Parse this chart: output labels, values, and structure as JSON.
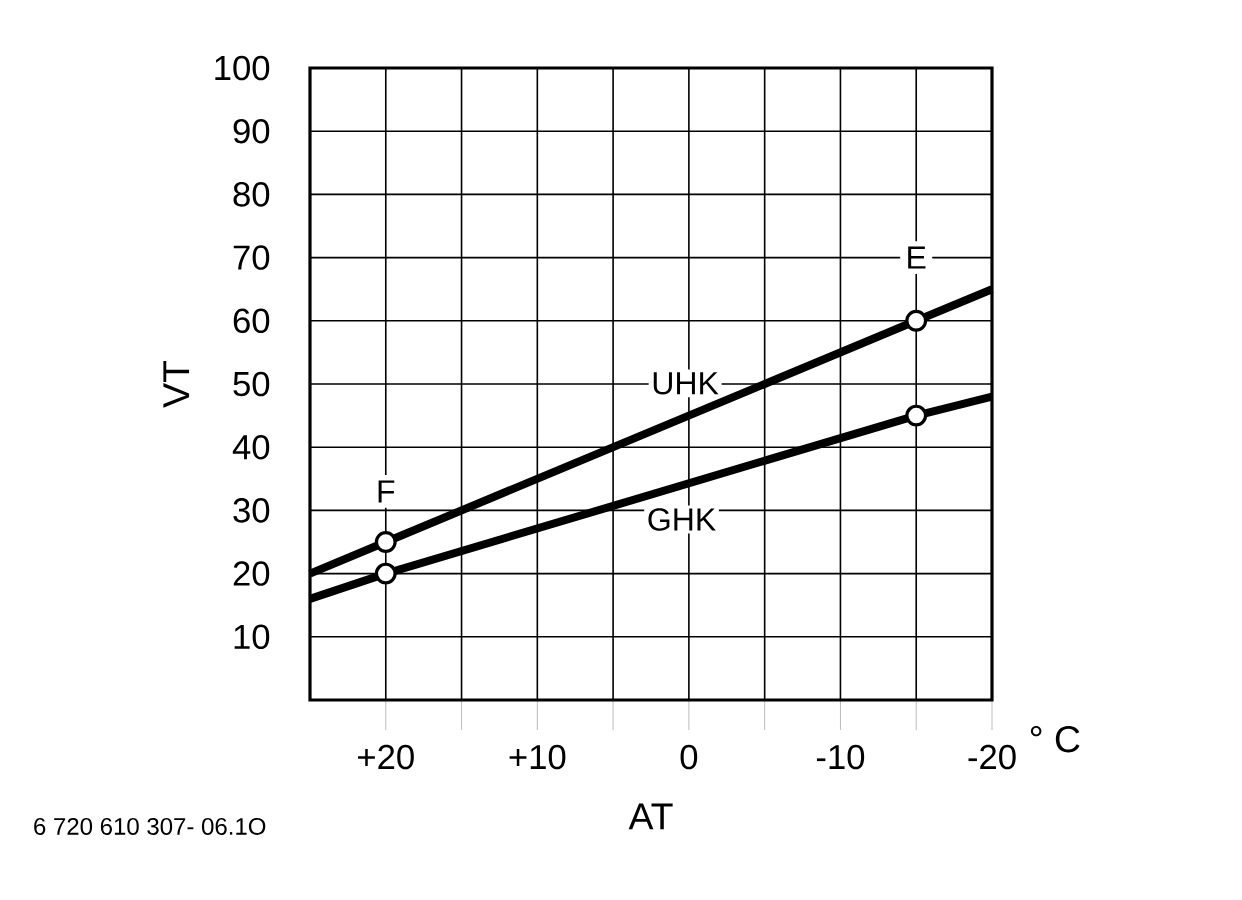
{
  "chart_data": {
    "type": "line",
    "xlabel": "AT",
    "ylabel": "VT",
    "x": [
      25,
      20,
      -15,
      -20
    ],
    "series": [
      {
        "name": "UHK",
        "color": "#000000",
        "values": [
          20,
          25,
          60,
          65
        ]
      },
      {
        "name": "GHK",
        "color": "#000000",
        "values": [
          16,
          20,
          45,
          48
        ]
      },
      {
        "type": "scatter",
        "color": "#000000",
        "marker": "circle",
        "values": [
          null,
          25,
          60,
          null
        ]
      },
      {
        "type": "scatter",
        "color": "#000000",
        "marker": "circle",
        "values": [
          null,
          20,
          45,
          null
        ]
      }
    ],
    "xlim": [
      25,
      -20
    ],
    "xticks": [
      {
        "value": 20,
        "label": "+20"
      },
      {
        "value": 15,
        "label": null
      },
      {
        "value": 10,
        "label": "+10"
      },
      {
        "value": 5,
        "label": null
      },
      0,
      {
        "value": -5,
        "label": null
      },
      -10,
      {
        "value": -15,
        "label": null
      },
      -20
    ],
    "ylim": [
      0,
      100
    ],
    "yticks": [
      10,
      20,
      30,
      40,
      50,
      60,
      70,
      80,
      90,
      100
    ],
    "grid": true,
    "annotations": [
      {
        "text": "E",
        "x": -15,
        "y": 70
      },
      {
        "text": "F",
        "x": 20,
        "y": 33
      },
      "° C",
      "6 720 610 307- 06.1O"
    ]
  }
}
